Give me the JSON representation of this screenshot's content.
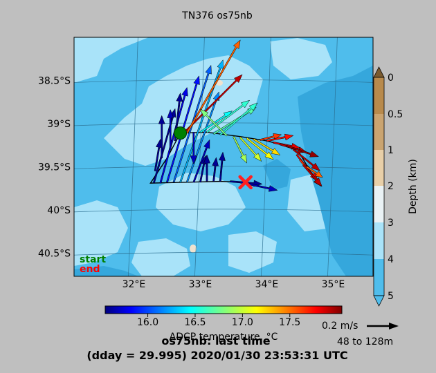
{
  "chart_data": {
    "type": "map-vector",
    "title": "TN376 os75nb",
    "map": {
      "lon_range": [
        31.1,
        35.6
      ],
      "lat_range": [
        -40.77,
        -38.0
      ],
      "lon_ticks": [
        {
          "value": 32,
          "label": "32°E"
        },
        {
          "value": 33,
          "label": "33°E"
        },
        {
          "value": 34,
          "label": "34°E"
        },
        {
          "value": 35,
          "label": "35°E"
        }
      ],
      "lat_ticks": [
        {
          "value": -38.5,
          "label": "38.5°S"
        },
        {
          "value": -39.0,
          "label": "39°S"
        },
        {
          "value": -39.5,
          "label": "39.5°S"
        },
        {
          "value": -40.0,
          "label": "40°S"
        },
        {
          "value": -40.5,
          "label": "40.5°S"
        }
      ],
      "grid": true,
      "start_label": "start",
      "end_label": "end",
      "start_color": "#008000",
      "end_color": "#ff0000",
      "start_point": {
        "lon": 32.7,
        "lat": -39.11
      },
      "end_point": {
        "lon": 33.68,
        "lat": -39.68
      },
      "track": [
        {
          "lon": 32.7,
          "lat": -39.11
        },
        {
          "lon": 33.1,
          "lat": -39.1
        },
        {
          "lon": 33.6,
          "lat": -39.15
        },
        {
          "lon": 34.0,
          "lat": -39.2
        },
        {
          "lon": 34.35,
          "lat": -39.27
        },
        {
          "lon": 34.5,
          "lat": -39.35
        },
        {
          "lon": 34.6,
          "lat": -39.48
        },
        {
          "lon": 34.65,
          "lat": -39.52
        }
      ],
      "track2": [
        {
          "lon": 32.7,
          "lat": -39.11
        },
        {
          "lon": 32.5,
          "lat": -39.4
        },
        {
          "lon": 32.25,
          "lat": -39.69
        },
        {
          "lon": 32.8,
          "lat": -39.68
        },
        {
          "lon": 33.3,
          "lat": -39.67
        },
        {
          "lon": 33.68,
          "lat": -39.68
        }
      ]
    },
    "vectors": [
      {
        "lon": 32.3,
        "lat": -39.69,
        "u": 0.08,
        "v": 0.28,
        "t": 15.6
      },
      {
        "lon": 32.4,
        "lat": -39.69,
        "u": 0.1,
        "v": 0.36,
        "t": 15.8
      },
      {
        "lon": 32.5,
        "lat": -39.68,
        "u": 0.12,
        "v": 0.4,
        "t": 15.9
      },
      {
        "lon": 32.6,
        "lat": -39.68,
        "u": 0.14,
        "v": 0.44,
        "t": 16.1
      },
      {
        "lon": 32.7,
        "lat": -39.68,
        "u": 0.16,
        "v": 0.46,
        "t": 16.3
      },
      {
        "lon": 32.8,
        "lat": -39.68,
        "u": 0.12,
        "v": 0.34,
        "t": 16.2
      },
      {
        "lon": 32.9,
        "lat": -39.68,
        "u": 0.06,
        "v": 0.16,
        "t": 15.7
      },
      {
        "lon": 33.0,
        "lat": -39.68,
        "u": 0.02,
        "v": 0.1,
        "t": 15.6
      },
      {
        "lon": 33.1,
        "lat": -39.67,
        "u": 0.0,
        "v": 0.1,
        "t": 15.6
      },
      {
        "lon": 33.2,
        "lat": -39.67,
        "u": 0.01,
        "v": 0.09,
        "t": 15.6
      },
      {
        "lon": 33.3,
        "lat": -39.67,
        "u": 0.01,
        "v": 0.11,
        "t": 15.6
      },
      {
        "lon": 33.45,
        "lat": -39.67,
        "u": 0.12,
        "v": -0.01,
        "t": 15.6
      },
      {
        "lon": 33.6,
        "lat": -39.68,
        "u": 0.14,
        "v": -0.03,
        "t": 15.7
      },
      {
        "lon": 32.32,
        "lat": -39.55,
        "u": 0.02,
        "v": 0.12,
        "t": 15.6
      },
      {
        "lon": 32.42,
        "lat": -39.4,
        "u": 0.0,
        "v": 0.16,
        "t": 15.6
      },
      {
        "lon": 32.55,
        "lat": -39.3,
        "u": 0.0,
        "v": 0.15,
        "t": 15.7
      },
      {
        "lon": 32.62,
        "lat": -39.2,
        "u": 0.02,
        "v": 0.18,
        "t": 15.6
      },
      {
        "lon": 32.75,
        "lat": -39.11,
        "u": 0.22,
        "v": 0.22,
        "t": 17.9
      },
      {
        "lon": 32.8,
        "lat": -39.11,
        "u": 0.2,
        "v": 0.35,
        "t": 17.5
      },
      {
        "lon": 32.9,
        "lat": -39.1,
        "u": 0.0,
        "v": -0.12,
        "t": 15.7
      },
      {
        "lon": 33.0,
        "lat": -39.1,
        "u": 0.12,
        "v": 0.08,
        "t": 16.5
      },
      {
        "lon": 33.1,
        "lat": -39.1,
        "u": 0.16,
        "v": 0.12,
        "t": 16.6
      },
      {
        "lon": 33.2,
        "lat": -39.12,
        "u": 0.16,
        "v": 0.1,
        "t": 16.7
      },
      {
        "lon": 33.3,
        "lat": -39.13,
        "u": 0.14,
        "v": 0.12,
        "t": 16.6
      },
      {
        "lon": 33.4,
        "lat": -39.14,
        "u": -0.1,
        "v": 0.1,
        "t": 16.8
      },
      {
        "lon": 33.5,
        "lat": -39.15,
        "u": 0.05,
        "v": -0.1,
        "t": 16.9
      },
      {
        "lon": 33.6,
        "lat": -39.16,
        "u": 0.08,
        "v": -0.09,
        "t": 17.0
      },
      {
        "lon": 33.7,
        "lat": -39.17,
        "u": 0.1,
        "v": -0.08,
        "t": 17.1
      },
      {
        "lon": 33.8,
        "lat": -39.18,
        "u": 0.1,
        "v": -0.06,
        "t": 17.2
      },
      {
        "lon": 33.9,
        "lat": -39.19,
        "u": 0.08,
        "v": 0.02,
        "t": 17.6
      },
      {
        "lon": 34.0,
        "lat": -39.2,
        "u": 0.1,
        "v": 0.02,
        "t": 17.7
      },
      {
        "lon": 34.1,
        "lat": -39.22,
        "u": 0.1,
        "v": -0.02,
        "t": 17.8
      },
      {
        "lon": 34.2,
        "lat": -39.24,
        "u": 0.1,
        "v": -0.03,
        "t": 17.9
      },
      {
        "lon": 34.3,
        "lat": -39.26,
        "u": 0.12,
        "v": -0.04,
        "t": 18.0
      },
      {
        "lon": 34.4,
        "lat": -39.3,
        "u": 0.1,
        "v": -0.08,
        "t": 17.9
      },
      {
        "lon": 34.45,
        "lat": -39.36,
        "u": 0.08,
        "v": -0.1,
        "t": 17.8
      },
      {
        "lon": 34.5,
        "lat": -39.42,
        "u": 0.08,
        "v": -0.1,
        "t": 17.6
      },
      {
        "lon": 34.55,
        "lat": -39.48,
        "u": 0.07,
        "v": -0.08,
        "t": 17.9
      },
      {
        "lon": 34.6,
        "lat": -39.5,
        "u": 0.06,
        "v": -0.04,
        "t": 17.5
      }
    ],
    "temperature_colorbar": {
      "label": "ADCP temperature, °C",
      "range": [
        15.55,
        18.05
      ],
      "ticks": [
        {
          "value": 16.0,
          "label": "16.0"
        },
        {
          "value": 16.5,
          "label": "16.5"
        },
        {
          "value": 17.0,
          "label": "17.0"
        },
        {
          "value": 17.5,
          "label": "17.5"
        }
      ]
    },
    "depth_colorbar": {
      "label": "Depth (km)",
      "ticks": [
        {
          "value": 0,
          "label": "0"
        },
        {
          "value": 0.5,
          "label": "0.5"
        },
        {
          "value": 1,
          "label": "1"
        },
        {
          "value": 2,
          "label": "2"
        },
        {
          "value": 3,
          "label": "3"
        },
        {
          "value": 4,
          "label": "4"
        },
        {
          "value": 5,
          "label": "5"
        }
      ],
      "colors": [
        "#b88a4c",
        "#caa470",
        "#e8cfa8",
        "#eaf2f5",
        "#a9e3f9",
        "#4fbdec"
      ]
    },
    "reference_vector": {
      "speed_label": "0.2 m/s",
      "speed": 0.2,
      "depth_range_label": "48 to 128m"
    },
    "footer": {
      "line1": "os75nb: last time",
      "line2": "(dday = 29.995) 2020/01/30 23:53:31 UTC"
    }
  }
}
